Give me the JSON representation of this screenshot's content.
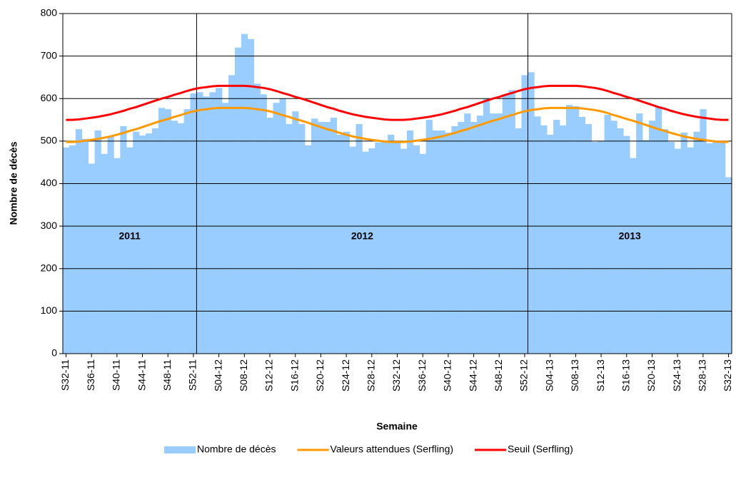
{
  "chart_data": {
    "type": "bar-line",
    "x_label": "Semaine",
    "y_label": "Nombre de décès",
    "annotations": [
      "2011",
      "2012",
      "2013"
    ],
    "categories": [
      "S32-11",
      null,
      null,
      null,
      "S36-11",
      null,
      null,
      null,
      "S40-11",
      null,
      null,
      null,
      "S44-11",
      null,
      null,
      null,
      "S48-11",
      null,
      null,
      null,
      "S52-11",
      null,
      null,
      null,
      "S04-12",
      null,
      null,
      null,
      "S08-12",
      null,
      null,
      null,
      "S12-12",
      null,
      null,
      null,
      "S16-12",
      null,
      null,
      null,
      "S20-12",
      null,
      null,
      null,
      "S24-12",
      null,
      null,
      null,
      "S28-12",
      null,
      null,
      null,
      "S32-12",
      null,
      null,
      null,
      "S36-12",
      null,
      null,
      null,
      "S40-12",
      null,
      null,
      null,
      "S44-12",
      null,
      null,
      null,
      "S48-12",
      null,
      null,
      null,
      "S52-12",
      null,
      null,
      null,
      "S04-13",
      null,
      null,
      null,
      "S08-13",
      null,
      null,
      null,
      "S12-13",
      null,
      null,
      null,
      "S16-13",
      null,
      null,
      null,
      "S20-13",
      null,
      null,
      null,
      "S24-13",
      null,
      null,
      null,
      "S28-13",
      null,
      null,
      null,
      "S32-13"
    ],
    "series": [
      {
        "name": "Nombre de décès",
        "type": "bar",
        "color": "#99ccff",
        "values": [
          485,
          490,
          528,
          505,
          447,
          525,
          470,
          510,
          460,
          535,
          485,
          522,
          513,
          518,
          530,
          578,
          575,
          548,
          542,
          575,
          612,
          615,
          605,
          615,
          625,
          590,
          655,
          720,
          752,
          740,
          635,
          610,
          555,
          590,
          600,
          540,
          570,
          540,
          490,
          553,
          545,
          545,
          555,
          515,
          522,
          487,
          540,
          475,
          483,
          497,
          498,
          515,
          500,
          482,
          525,
          490,
          470,
          550,
          525,
          525,
          520,
          535,
          545,
          565,
          545,
          560,
          600,
          565,
          565,
          610,
          620,
          530,
          655,
          662,
          558,
          537,
          515,
          550,
          537,
          585,
          582,
          557,
          540,
          498,
          500,
          562,
          548,
          530,
          512,
          460,
          565,
          502,
          548,
          582,
          528,
          498,
          482,
          520,
          485,
          522,
          575,
          495,
          500,
          497,
          415
        ]
      },
      {
        "name": "Valeurs attendues (Serfling)",
        "type": "line",
        "color": "#ff9900",
        "values": [
          498,
          498,
          499,
          501,
          503,
          505,
          508,
          511,
          515,
          519,
          524,
          528,
          533,
          538,
          543,
          548,
          552,
          557,
          561,
          566,
          570,
          573,
          575,
          577,
          578,
          578,
          578,
          578,
          578,
          577,
          575,
          573,
          570,
          566,
          561,
          557,
          552,
          548,
          543,
          538,
          533,
          528,
          524,
          519,
          515,
          511,
          508,
          505,
          503,
          501,
          499,
          498,
          498,
          498,
          499,
          501,
          503,
          505,
          508,
          511,
          515,
          519,
          524,
          528,
          533,
          538,
          543,
          548,
          552,
          557,
          561,
          566,
          570,
          573,
          575,
          577,
          578,
          578,
          578,
          578,
          578,
          577,
          575,
          573,
          570,
          566,
          561,
          557,
          552,
          548,
          543,
          538,
          533,
          528,
          524,
          519,
          515,
          511,
          508,
          505,
          503,
          501,
          499,
          498,
          498
        ]
      },
      {
        "name": "Seuil (Serfling)",
        "type": "line",
        "color": "#ff0000",
        "values": [
          550,
          550,
          551,
          553,
          555,
          557,
          560,
          563,
          567,
          571,
          576,
          580,
          585,
          590,
          595,
          600,
          604,
          609,
          613,
          618,
          622,
          625,
          627,
          629,
          630,
          630,
          630,
          630,
          630,
          629,
          627,
          625,
          622,
          618,
          613,
          609,
          604,
          600,
          595,
          590,
          585,
          580,
          576,
          571,
          567,
          563,
          560,
          557,
          555,
          553,
          551,
          550,
          550,
          550,
          551,
          553,
          555,
          557,
          560,
          563,
          567,
          571,
          576,
          580,
          585,
          590,
          595,
          600,
          604,
          609,
          613,
          618,
          622,
          625,
          627,
          629,
          630,
          630,
          630,
          630,
          630,
          629,
          627,
          625,
          622,
          618,
          613,
          609,
          604,
          600,
          595,
          590,
          585,
          580,
          576,
          571,
          567,
          563,
          560,
          557,
          555,
          553,
          551,
          550,
          550
        ]
      }
    ],
    "ylim": [
      0,
      800
    ],
    "yticks": [
      0,
      100,
      200,
      300,
      400,
      500,
      600,
      700,
      800
    ],
    "grid": true
  }
}
